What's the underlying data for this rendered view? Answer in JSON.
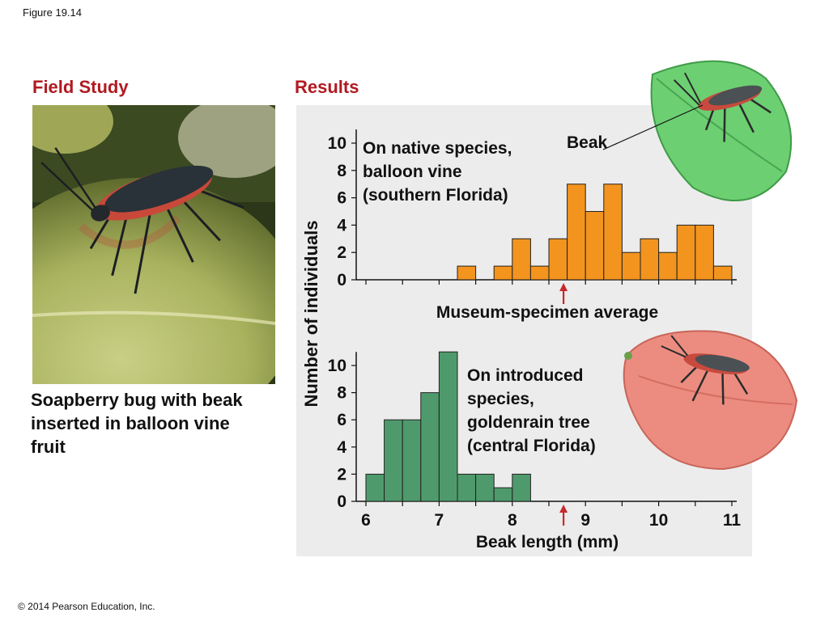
{
  "figure_label": "Figure 19.14",
  "field_study_heading": "Field Study",
  "results_heading": "Results",
  "caption": {
    "line1": "Soapberry bug with beak",
    "line2": "inserted in balloon vine",
    "line3": "fruit"
  },
  "copyright": "© 2014 Pearson Education, Inc.",
  "colors": {
    "heading": "#b11a21",
    "native_bars": "#f3941e",
    "introduced_bars": "#4f9a6c",
    "arrow": "#c8282a"
  },
  "beak_label": "Beak",
  "chart_data": [
    {
      "type": "bar",
      "annotation": [
        "On native species,",
        "balloon vine",
        "(southern Florida)"
      ],
      "ylabel": "Number of individuals",
      "yticks": [
        0,
        2,
        4,
        6,
        8,
        10
      ],
      "ylim": [
        0,
        11
      ],
      "xlim": [
        6,
        11
      ],
      "bin_width": 0.25,
      "bin_starts": [
        6.0,
        6.25,
        6.5,
        6.75,
        7.0,
        7.25,
        7.5,
        7.75,
        8.0,
        8.25,
        8.5,
        8.75,
        9.0,
        9.25,
        9.5,
        9.75,
        10.0,
        10.25,
        10.5,
        10.75
      ],
      "values": [
        0,
        0,
        0,
        0,
        0,
        1,
        0,
        1,
        3,
        1,
        3,
        7,
        5,
        7,
        2,
        3,
        2,
        4,
        4,
        1
      ],
      "average_marker": {
        "x": 8.7,
        "label": "Museum-specimen average"
      }
    },
    {
      "type": "bar",
      "annotation": [
        "On introduced",
        "species,",
        "goldenrain tree",
        "(central Florida)"
      ],
      "xlabel": "Beak length (mm)",
      "xticks": [
        6,
        7,
        8,
        9,
        10,
        11
      ],
      "yticks": [
        0,
        2,
        4,
        6,
        8,
        10
      ],
      "ylim": [
        0,
        11
      ],
      "xlim": [
        6,
        11
      ],
      "bin_width": 0.25,
      "bin_starts": [
        6.0,
        6.25,
        6.5,
        6.75,
        7.0,
        7.25,
        7.5,
        7.75,
        8.0
      ],
      "values": [
        2,
        6,
        6,
        8,
        11,
        2,
        2,
        1,
        2
      ],
      "average_marker": {
        "x": 8.7
      }
    }
  ]
}
